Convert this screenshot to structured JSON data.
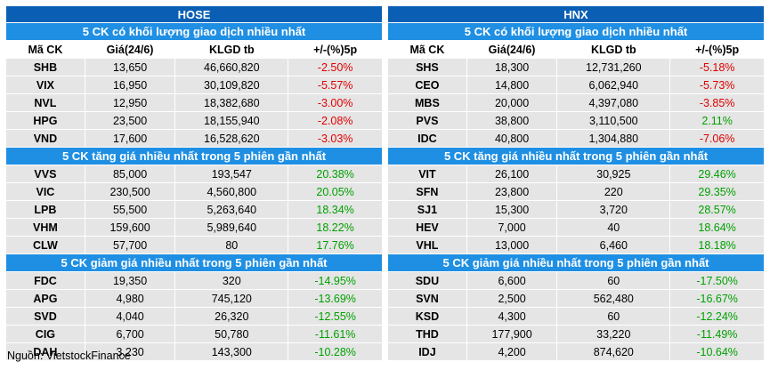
{
  "source": "Nguồn: VietstockFinance",
  "columns": [
    "Mã CK",
    "Giá(24/6)",
    "KLGD tb",
    "+/-(%)5p"
  ],
  "colors": {
    "exchange_header": "#0a5fb4",
    "section_header": "#1f8fe3",
    "row_bg": "#e5e5e5",
    "up": "#00a000",
    "down": "#e00000"
  },
  "panels": [
    {
      "exchange": "HOSE",
      "sections": [
        {
          "title": "5 CK có khối lượng giao dịch nhiều nhất",
          "has_col_header": true,
          "rows": [
            {
              "symbol": "SHB",
              "price": "13,650",
              "volume": "46,660,820",
              "change": "-2.50%",
              "dir": "down"
            },
            {
              "symbol": "VIX",
              "price": "16,950",
              "volume": "30,109,820",
              "change": "-5.57%",
              "dir": "down"
            },
            {
              "symbol": "NVL",
              "price": "12,950",
              "volume": "18,382,680",
              "change": "-3.00%",
              "dir": "down"
            },
            {
              "symbol": "HPG",
              "price": "23,500",
              "volume": "18,155,940",
              "change": "-2.08%",
              "dir": "down"
            },
            {
              "symbol": "VND",
              "price": "17,600",
              "volume": "16,528,620",
              "change": "-3.03%",
              "dir": "down"
            }
          ]
        },
        {
          "title": "5 CK tăng giá nhiều nhất trong 5 phiên gần nhất",
          "has_col_header": false,
          "rows": [
            {
              "symbol": "VVS",
              "price": "85,000",
              "volume": "193,547",
              "change": "20.38%",
              "dir": "up"
            },
            {
              "symbol": "VIC",
              "price": "230,500",
              "volume": "4,560,800",
              "change": "20.05%",
              "dir": "up"
            },
            {
              "symbol": "LPB",
              "price": "55,500",
              "volume": "5,263,640",
              "change": "18.34%",
              "dir": "up"
            },
            {
              "symbol": "VHM",
              "price": "159,600",
              "volume": "5,989,640",
              "change": "18.22%",
              "dir": "up"
            },
            {
              "symbol": "CLW",
              "price": "57,700",
              "volume": "80",
              "change": "17.76%",
              "dir": "up"
            }
          ]
        },
        {
          "title": "5 CK giảm giá nhiều nhất trong 5 phiên gần nhất",
          "has_col_header": false,
          "rows": [
            {
              "symbol": "FDC",
              "price": "19,350",
              "volume": "320",
              "change": "-14.95%",
              "dir": "up"
            },
            {
              "symbol": "APG",
              "price": "4,980",
              "volume": "745,120",
              "change": "-13.69%",
              "dir": "up"
            },
            {
              "symbol": "SVD",
              "price": "4,040",
              "volume": "26,320",
              "change": "-12.55%",
              "dir": "up"
            },
            {
              "symbol": "CIG",
              "price": "6,700",
              "volume": "50,780",
              "change": "-11.61%",
              "dir": "up"
            },
            {
              "symbol": "DAH",
              "price": "3,230",
              "volume": "143,300",
              "change": "-10.28%",
              "dir": "up"
            }
          ]
        }
      ]
    },
    {
      "exchange": "HNX",
      "sections": [
        {
          "title": "5 CK có khối lượng giao dịch nhiều nhất",
          "has_col_header": true,
          "rows": [
            {
              "symbol": "SHS",
              "price": "18,300",
              "volume": "12,731,260",
              "change": "-5.18%",
              "dir": "down"
            },
            {
              "symbol": "CEO",
              "price": "14,800",
              "volume": "6,062,940",
              "change": "-5.73%",
              "dir": "down"
            },
            {
              "symbol": "MBS",
              "price": "20,000",
              "volume": "4,397,080",
              "change": "-3.85%",
              "dir": "down"
            },
            {
              "symbol": "PVS",
              "price": "38,800",
              "volume": "3,110,500",
              "change": "2.11%",
              "dir": "up"
            },
            {
              "symbol": "IDC",
              "price": "40,800",
              "volume": "1,304,880",
              "change": "-7.06%",
              "dir": "down"
            }
          ]
        },
        {
          "title": "5 CK tăng giá nhiều nhất trong 5 phiên gần nhất",
          "has_col_header": false,
          "rows": [
            {
              "symbol": "VIT",
              "price": "26,100",
              "volume": "30,925",
              "change": "29.46%",
              "dir": "up"
            },
            {
              "symbol": "SFN",
              "price": "23,800",
              "volume": "220",
              "change": "29.35%",
              "dir": "up"
            },
            {
              "symbol": "SJ1",
              "price": "15,300",
              "volume": "3,720",
              "change": "28.57%",
              "dir": "up"
            },
            {
              "symbol": "HEV",
              "price": "7,000",
              "volume": "40",
              "change": "18.64%",
              "dir": "up"
            },
            {
              "symbol": "VHL",
              "price": "13,000",
              "volume": "6,460",
              "change": "18.18%",
              "dir": "up"
            }
          ]
        },
        {
          "title": "5 CK giảm giá nhiều nhất trong 5 phiên gần nhất",
          "has_col_header": false,
          "rows": [
            {
              "symbol": "SDU",
              "price": "6,600",
              "volume": "60",
              "change": "-17.50%",
              "dir": "up"
            },
            {
              "symbol": "SVN",
              "price": "2,500",
              "volume": "562,480",
              "change": "-16.67%",
              "dir": "up"
            },
            {
              "symbol": "KSD",
              "price": "4,300",
              "volume": "60",
              "change": "-12.24%",
              "dir": "up"
            },
            {
              "symbol": "THD",
              "price": "177,900",
              "volume": "33,220",
              "change": "-11.49%",
              "dir": "up"
            },
            {
              "symbol": "IDJ",
              "price": "4,200",
              "volume": "874,620",
              "change": "-10.64%",
              "dir": "up"
            }
          ]
        }
      ]
    }
  ]
}
